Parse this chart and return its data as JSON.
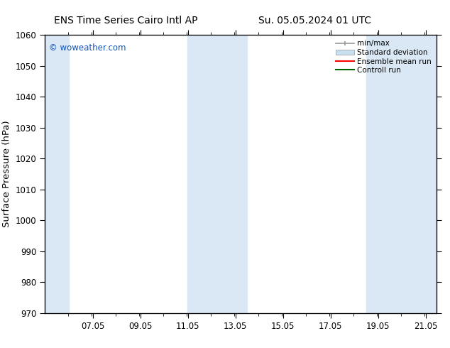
{
  "title_left": "ENS Time Series Cairo Intl AP",
  "title_right": "Su. 05.05.2024 01 UTC",
  "ylabel": "Surface Pressure (hPa)",
  "ylim": [
    970,
    1060
  ],
  "yticks": [
    970,
    980,
    990,
    1000,
    1010,
    1020,
    1030,
    1040,
    1050,
    1060
  ],
  "xlim_start": 5.04,
  "xlim_end": 21.5,
  "xticks": [
    7.05,
    9.05,
    11.05,
    13.05,
    15.05,
    17.05,
    19.05,
    21.05
  ],
  "xticklabels": [
    "07.05",
    "09.05",
    "11.05",
    "13.05",
    "15.05",
    "17.05",
    "19.05",
    "21.05"
  ],
  "shaded_bands": [
    {
      "x_start": 5.04,
      "x_end": 6.04
    },
    {
      "x_start": 11.04,
      "x_end": 13.54
    },
    {
      "x_start": 18.54,
      "x_end": 21.5
    }
  ],
  "band_color": "#dae8f5",
  "watermark": "© woweather.com",
  "watermark_color": "#1155bb",
  "legend_items": [
    {
      "label": "min/max",
      "color": "#aaaaaa"
    },
    {
      "label": "Standard deviation",
      "color": "#c8dff0"
    },
    {
      "label": "Ensemble mean run",
      "color": "red"
    },
    {
      "label": "Controll run",
      "color": "darkgreen"
    }
  ],
  "background_color": "#ffffff",
  "plot_bg_color": "#ffffff",
  "title_fontsize": 10,
  "tick_fontsize": 8.5,
  "ylabel_fontsize": 9.5
}
